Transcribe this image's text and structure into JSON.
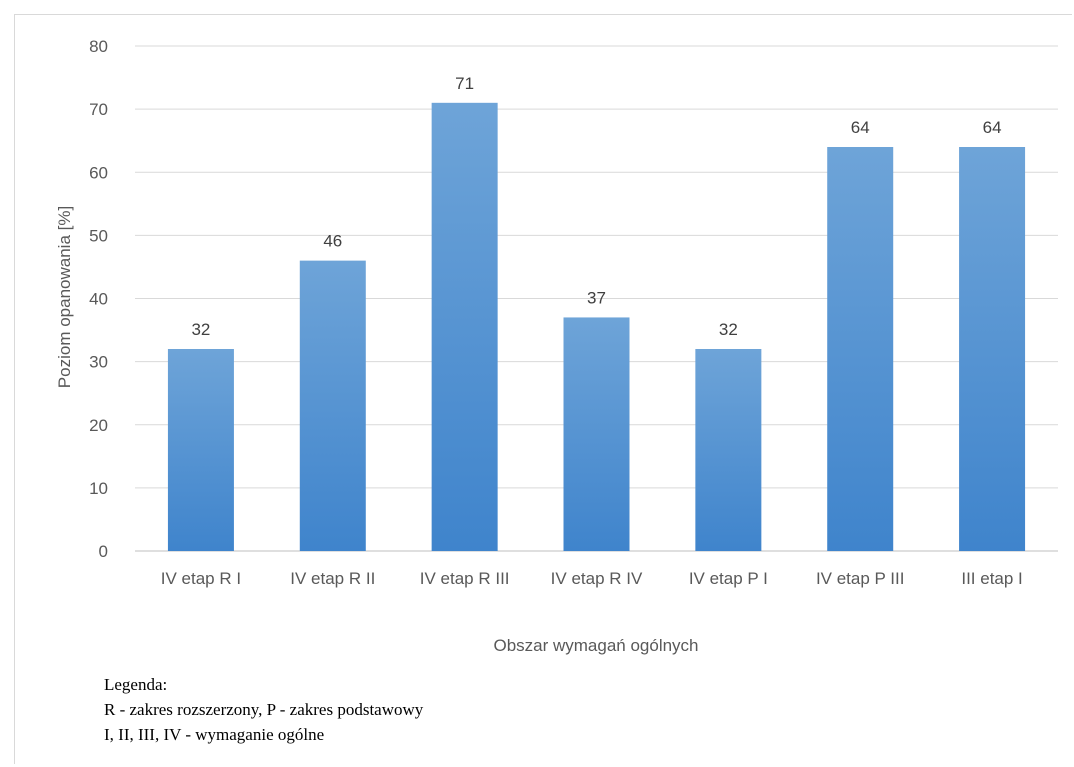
{
  "chart_data": {
    "type": "bar",
    "categories": [
      "IV etap R I",
      "IV etap R II",
      "IV etap R III",
      "IV etap R IV",
      "IV etap P I",
      "IV etap P III",
      "III etap I"
    ],
    "values": [
      32,
      46,
      71,
      37,
      32,
      64,
      64
    ],
    "data_labels": [
      "32",
      "46",
      "71",
      "37",
      "32",
      "64",
      "64"
    ],
    "title": "",
    "xlabel": "Obszar wymagań ogólnych",
    "ylabel": "Poziom opanowania [%]",
    "ylim": [
      0,
      80
    ],
    "yticks": [
      0,
      10,
      20,
      30,
      40,
      50,
      60,
      70,
      80
    ],
    "grid": true,
    "bar_color": "#5b9bd5"
  },
  "legend": {
    "title": "Legenda:",
    "line1": "R - zakres rozszerzony, P - zakres podstawowy",
    "line2": "I, II, III, IV - wymaganie ogólne"
  }
}
